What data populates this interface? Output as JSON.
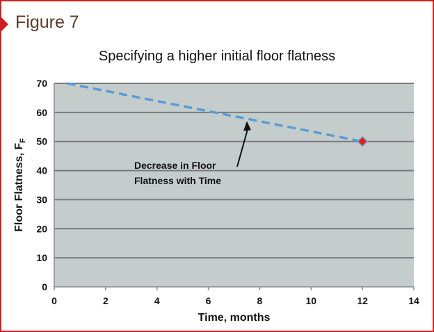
{
  "figure_label": "Figure 7",
  "chart_data": {
    "type": "line",
    "title": "Specifying a higher initial floor flatness",
    "xlabel": "Time, months",
    "ylabel": "Floor Flatness, F",
    "ylabel_subscript": "F",
    "xlim": [
      0,
      14
    ],
    "ylim": [
      0,
      70
    ],
    "xticks": [
      0,
      2,
      4,
      6,
      8,
      10,
      12,
      14
    ],
    "yticks": [
      0,
      10,
      20,
      30,
      40,
      50,
      60,
      70
    ],
    "grid": "horizontal",
    "series": [
      {
        "x": [
          0.5,
          12
        ],
        "y": [
          70,
          50
        ],
        "style": "dashed",
        "color": "#5b9bd5"
      }
    ],
    "marker": {
      "x": 12,
      "y": 50,
      "shape": "diamond",
      "color": "#e02020"
    },
    "annotation": {
      "lines": [
        "Decrease in Floor",
        "Flatness with Time"
      ],
      "arrow_to": {
        "x": 7.5,
        "y": 57
      }
    },
    "plot_background": "#c4cdcc"
  }
}
